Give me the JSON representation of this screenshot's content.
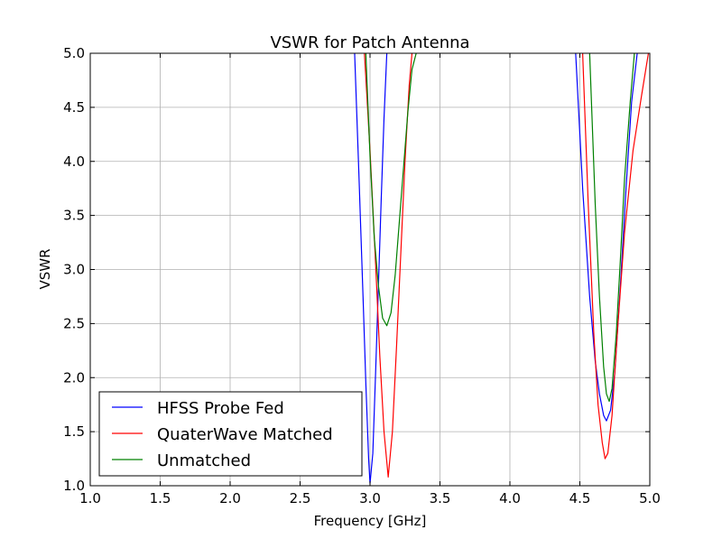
{
  "chart_data": {
    "type": "line",
    "title": "VSWR for Patch Antenna",
    "xlabel": "Frequency [GHz]",
    "ylabel": "VSWR",
    "xlim": [
      1.0,
      5.0
    ],
    "ylim": [
      1.0,
      5.0
    ],
    "xticks": [
      "1.0",
      "1.5",
      "2.0",
      "2.5",
      "3.0",
      "3.5",
      "4.0",
      "4.5",
      "5.0"
    ],
    "yticks": [
      "1.0",
      "1.5",
      "2.0",
      "2.5",
      "3.0",
      "3.5",
      "4.0",
      "4.5",
      "5.0"
    ],
    "grid": true,
    "legend_position": "lower-left",
    "series": [
      {
        "name": "HFSS Probe Fed",
        "color": "#0000ff",
        "x": [
          2.89,
          2.92,
          2.95,
          2.97,
          2.99,
          3.0,
          3.02,
          3.04,
          3.06,
          3.08,
          3.1,
          3.12,
          4.47,
          4.52,
          4.57,
          4.61,
          4.64,
          4.67,
          4.69,
          4.72,
          4.75,
          4.79,
          4.83,
          4.87,
          4.91
        ],
        "y": [
          5.0,
          3.9,
          2.75,
          1.95,
          1.25,
          1.02,
          1.3,
          2.05,
          2.85,
          3.65,
          4.4,
          5.0,
          5.0,
          3.75,
          2.75,
          2.15,
          1.85,
          1.65,
          1.6,
          1.7,
          2.05,
          2.85,
          3.75,
          4.55,
          5.0
        ]
      },
      {
        "name": "QuaterWave Matched",
        "color": "#ff0000",
        "x": [
          2.96,
          3.0,
          3.04,
          3.07,
          3.1,
          3.13,
          3.16,
          3.19,
          3.22,
          3.25,
          3.28,
          3.3,
          4.52,
          4.56,
          4.6,
          4.63,
          4.66,
          4.68,
          4.7,
          4.73,
          4.77,
          4.82,
          4.88,
          4.94,
          4.99
        ],
        "y": [
          5.0,
          4.1,
          3.05,
          2.2,
          1.5,
          1.08,
          1.5,
          2.3,
          3.15,
          4.0,
          4.7,
          5.0,
          5.0,
          3.6,
          2.4,
          1.75,
          1.4,
          1.25,
          1.3,
          1.65,
          2.45,
          3.35,
          4.1,
          4.6,
          5.0
        ]
      },
      {
        "name": "Unmatched",
        "color": "#008000",
        "x": [
          2.97,
          3.0,
          3.03,
          3.06,
          3.09,
          3.12,
          3.15,
          3.18,
          3.21,
          3.24,
          3.27,
          3.3,
          3.33,
          4.57,
          4.61,
          4.64,
          4.67,
          4.69,
          4.71,
          4.73,
          4.76,
          4.79,
          4.82,
          4.86,
          4.89
        ],
        "y": [
          5.0,
          4.05,
          3.3,
          2.85,
          2.55,
          2.48,
          2.6,
          2.95,
          3.45,
          3.95,
          4.45,
          4.85,
          5.0,
          5.0,
          3.6,
          2.75,
          2.1,
          1.85,
          1.78,
          1.9,
          2.4,
          3.1,
          3.85,
          4.55,
          5.0
        ]
      }
    ]
  }
}
